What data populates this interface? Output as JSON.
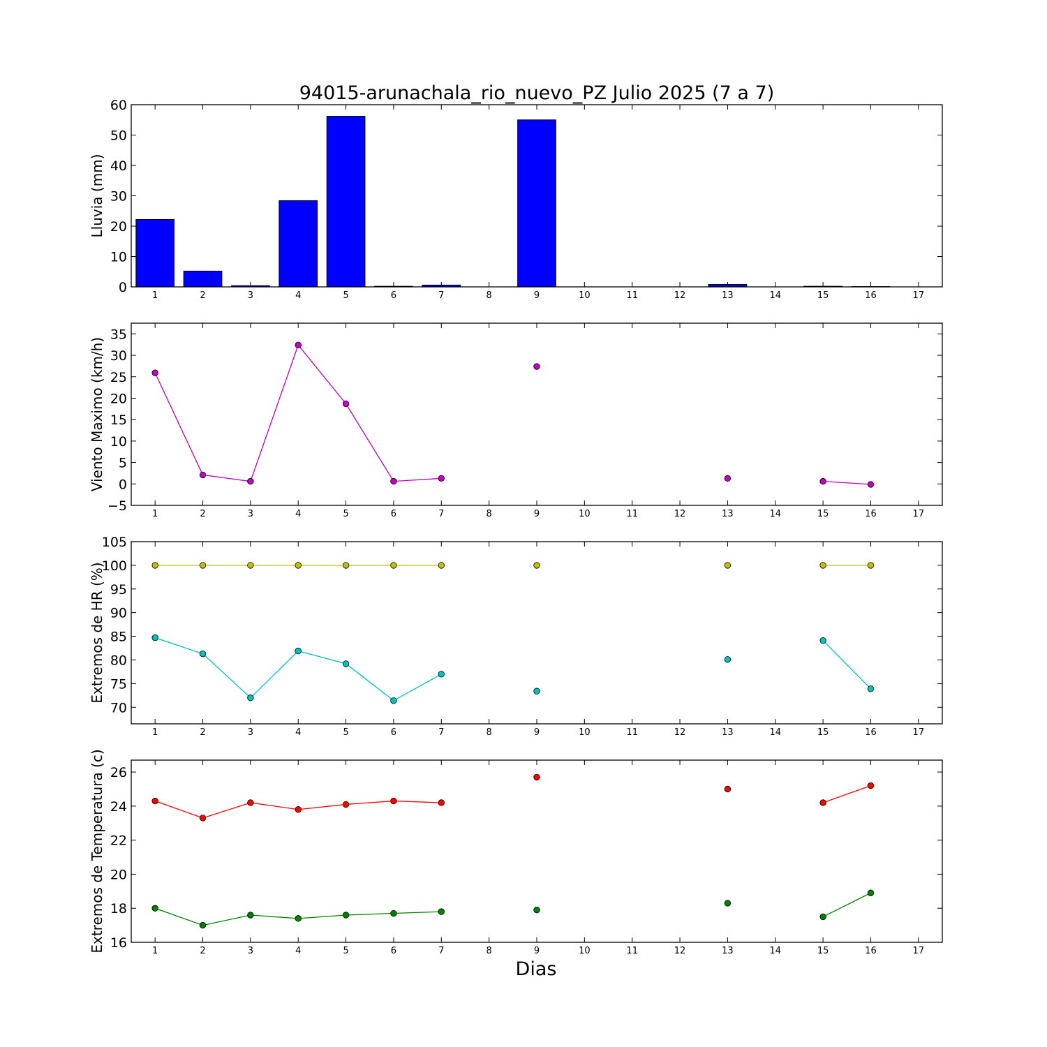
{
  "title": "94015-arunachala_rio_nuevo_PZ Julio 2025  (7 a 7)",
  "xlabel": "Dias",
  "chart_data": [
    {
      "type": "bar",
      "ylabel": "Lluvia (mm)",
      "categories": [
        1,
        2,
        3,
        4,
        5,
        6,
        7,
        8,
        9,
        10,
        11,
        12,
        13,
        14,
        15,
        16,
        17
      ],
      "ylim": [
        0,
        60
      ],
      "yticks": [
        0,
        10,
        20,
        30,
        40,
        50,
        60
      ],
      "bar_color": "#0000ff",
      "values": [
        22.2,
        5.2,
        0.4,
        28.4,
        56.2,
        0.2,
        0.6,
        0,
        55.0,
        0,
        0,
        0,
        0.8,
        0,
        0.2,
        0.1,
        0
      ]
    },
    {
      "type": "line",
      "ylabel": "Viento Maximo (km/h)",
      "xlim": [
        0.5,
        17.5
      ],
      "ylim": [
        -5,
        37.5
      ],
      "yticks": [
        -5,
        0,
        5,
        10,
        15,
        20,
        25,
        30,
        35
      ],
      "series": [
        {
          "color": "#bf00bf",
          "x": [
            1,
            2,
            3,
            4,
            5,
            6,
            7,
            8,
            9,
            10,
            11,
            12,
            13,
            14,
            15,
            16,
            17
          ],
          "y": [
            25.9,
            2.1,
            0.6,
            32.4,
            18.7,
            0.6,
            1.3,
            null,
            27.4,
            null,
            null,
            null,
            1.3,
            null,
            0.6,
            -0.1,
            null
          ]
        }
      ]
    },
    {
      "type": "line",
      "ylabel": "Extremos de HR (%)",
      "xlim": [
        0.5,
        17.5
      ],
      "ylim": [
        66.5,
        105
      ],
      "yticks": [
        70,
        75,
        80,
        85,
        90,
        95,
        100,
        105
      ],
      "series": [
        {
          "color": "#bfbf00",
          "x": [
            1,
            2,
            3,
            4,
            5,
            6,
            7,
            8,
            9,
            10,
            11,
            12,
            13,
            14,
            15,
            16,
            17
          ],
          "y": [
            100,
            100,
            100,
            100,
            100,
            100,
            100,
            null,
            100,
            null,
            null,
            null,
            100,
            null,
            100,
            100,
            null
          ]
        },
        {
          "color": "#00bfbf",
          "x": [
            1,
            2,
            3,
            4,
            5,
            6,
            7,
            8,
            9,
            10,
            11,
            12,
            13,
            14,
            15,
            16,
            17
          ],
          "y": [
            84.7,
            81.3,
            72.0,
            81.9,
            79.2,
            71.4,
            77.0,
            null,
            73.4,
            null,
            null,
            null,
            80.1,
            null,
            84.1,
            73.9,
            null
          ]
        }
      ]
    },
    {
      "type": "line",
      "ylabel": "Extremos de Temperatura (c)",
      "xlim": [
        0.5,
        17.5
      ],
      "ylim": [
        16,
        26.7
      ],
      "yticks": [
        16,
        18,
        20,
        22,
        24,
        26
      ],
      "series": [
        {
          "color": "#ff0000",
          "x": [
            1,
            2,
            3,
            4,
            5,
            6,
            7,
            8,
            9,
            10,
            11,
            12,
            13,
            14,
            15,
            16,
            17
          ],
          "y": [
            24.3,
            23.3,
            24.2,
            23.8,
            24.1,
            24.3,
            24.2,
            null,
            25.7,
            null,
            null,
            null,
            25.0,
            null,
            24.2,
            25.2,
            null
          ]
        },
        {
          "color": "#008000",
          "x": [
            1,
            2,
            3,
            4,
            5,
            6,
            7,
            8,
            9,
            10,
            11,
            12,
            13,
            14,
            15,
            16,
            17
          ],
          "y": [
            18.0,
            17.0,
            17.6,
            17.4,
            17.6,
            17.7,
            17.8,
            null,
            17.9,
            null,
            null,
            null,
            18.3,
            null,
            17.5,
            18.9,
            null
          ]
        }
      ]
    }
  ]
}
